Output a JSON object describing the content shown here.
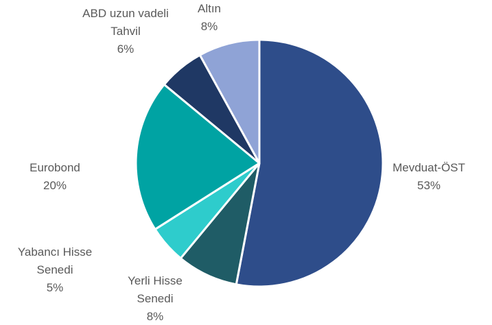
{
  "chart_data": {
    "type": "pie",
    "categories": [
      "Mevduat-ÖST",
      "Yerli Hisse Senedi",
      "Yabancı Hisse Senedi",
      "Eurobond",
      "ABD uzun vadeli Tahvil",
      "Altın"
    ],
    "values": [
      53,
      8,
      5,
      20,
      6,
      8
    ],
    "value_labels": [
      "53%",
      "8%",
      "5%",
      "20%",
      "6%",
      "8%"
    ],
    "colors": [
      "#2e4d8a",
      "#1f5c66",
      "#2ecccc",
      "#00a3a3",
      "#1f3864",
      "#8fa3d6"
    ]
  }
}
